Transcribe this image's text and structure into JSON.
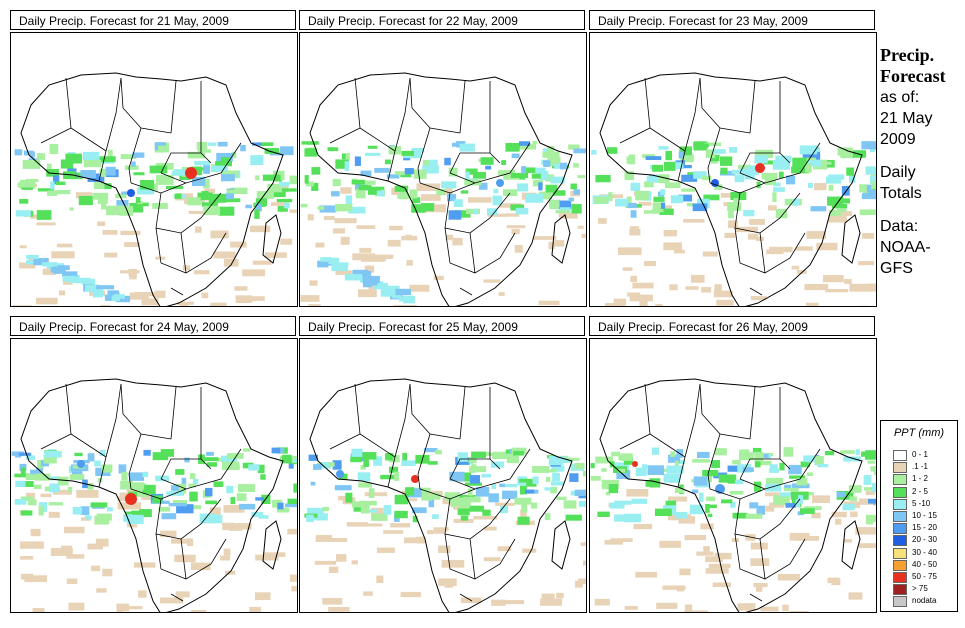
{
  "panels": [
    {
      "title": "Daily Precip. Forecast for  21 May, 2009"
    },
    {
      "title": "Daily Precip. Forecast for  22 May, 2009"
    },
    {
      "title": "Daily Precip. Forecast for  23 May, 2009"
    },
    {
      "title": "Daily Precip. Forecast for  24 May, 2009"
    },
    {
      "title": "Daily Precip. Forecast for  25 May, 2009"
    },
    {
      "title": "Daily Precip. Forecast for  26 May, 2009"
    }
  ],
  "info": {
    "title_line1": "Precip.",
    "title_line2": "Forecast",
    "asof_line": "as of:",
    "date_line1": "21 May",
    "date_line2": "2009",
    "totals_line1": "Daily",
    "totals_line2": "Totals",
    "data_line1": "Data:",
    "data_line2": "NOAA-",
    "data_line3": "GFS"
  },
  "legend": {
    "title": "PPT (mm)",
    "items": [
      {
        "label": "0 - 1",
        "color": "#ffffff"
      },
      {
        "label": ".1 -1",
        "color": "#e9d3b7"
      },
      {
        "label": "1 - 2",
        "color": "#a8f0a0"
      },
      {
        "label": "2 - 5",
        "color": "#55e05a"
      },
      {
        "label": "5 -10",
        "color": "#98eef0"
      },
      {
        "label": "10 - 15",
        "color": "#7fc6f5"
      },
      {
        "label": "15 - 20",
        "color": "#4f9df0"
      },
      {
        "label": "20 - 30",
        "color": "#1f5fe0"
      },
      {
        "label": "30 - 40",
        "color": "#f5e07a"
      },
      {
        "label": "40 - 50",
        "color": "#f5a030"
      },
      {
        "label": "50 - 75",
        "color": "#e83020"
      },
      {
        "label": "> 75",
        "color": "#a02020"
      },
      {
        "label": "nodata",
        "color": "#c8c8c8"
      }
    ]
  },
  "colors": {
    "border": "#000000",
    "tan": "#e9d3b7",
    "lightgreen": "#a8f0a0",
    "green": "#55e05a",
    "cyan": "#98eef0",
    "lightblue": "#7fc6f5",
    "blue": "#4f9df0",
    "darkblue": "#1f5fe0",
    "red": "#e83020"
  }
}
